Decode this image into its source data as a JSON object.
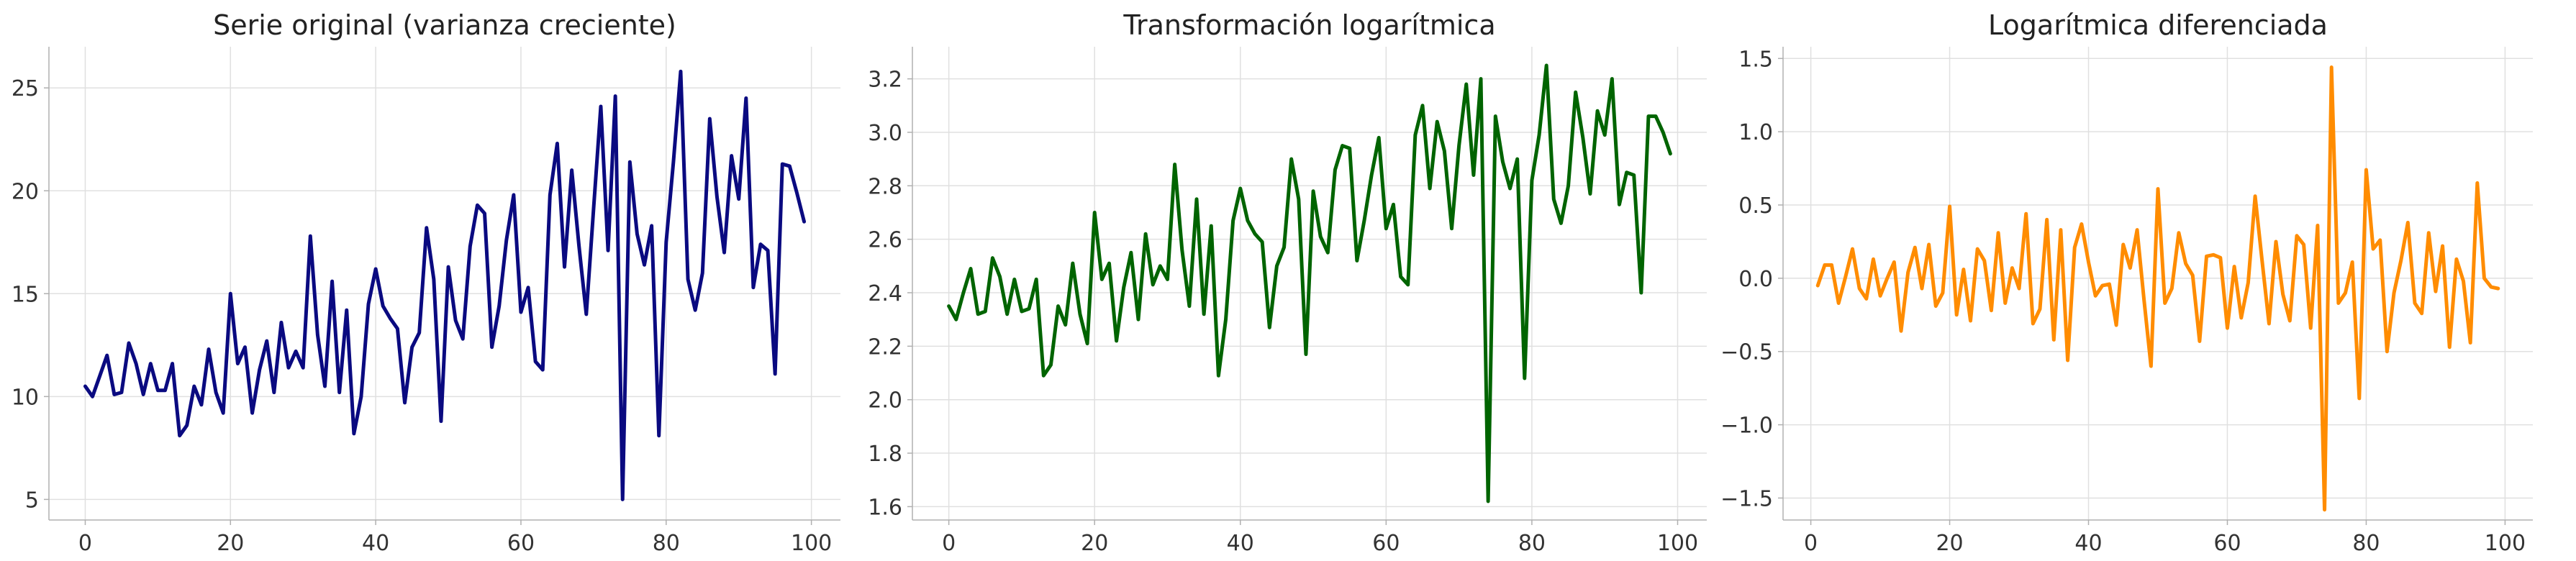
{
  "chart_data": [
    {
      "type": "line",
      "title": "Serie original (varianza creciente)",
      "xlabel": "",
      "ylabel": "",
      "xlim": [
        -5,
        104
      ],
      "ylim": [
        4,
        27
      ],
      "xticks": [
        0,
        20,
        40,
        60,
        80,
        100
      ],
      "xtick_labels": [
        "0",
        "20",
        "40",
        "60",
        "80",
        "100"
      ],
      "yticks": [
        5,
        10,
        15,
        20,
        25
      ],
      "ytick_labels": [
        "5",
        "10",
        "15",
        "20",
        "25"
      ],
      "grid": true,
      "color": "#0a0a80",
      "x_start": 0,
      "values": [
        10.5,
        10,
        11,
        12,
        10.1,
        10.2,
        12.6,
        11.6,
        10.1,
        11.6,
        10.3,
        10.3,
        11.6,
        8.1,
        8.6,
        10.5,
        9.6,
        12.3,
        10.2,
        9.2,
        15,
        11.6,
        12.4,
        9.2,
        11.3,
        12.7,
        10.2,
        13.6,
        11.4,
        12.2,
        11.4,
        17.8,
        13,
        10.5,
        15.6,
        10.2,
        14.2,
        8.2,
        10,
        14.5,
        16.2,
        14.4,
        13.8,
        13.3,
        9.7,
        12.4,
        13.1,
        18.2,
        15.7,
        8.8,
        16.3,
        13.7,
        12.8,
        17.3,
        19.3,
        18.9,
        12.4,
        14.4,
        17.6,
        19.8,
        14.1,
        15.3,
        11.7,
        11.3,
        19.8,
        22.3,
        16.3,
        21,
        17.3,
        14,
        19.1,
        24.1,
        17.1,
        24.6,
        5,
        21.4,
        17.9,
        16.4,
        18.3,
        8.1,
        17.5,
        21.4,
        25.8,
        15.7,
        14.2,
        16,
        23.5,
        19.7,
        17,
        21.7,
        19.6,
        24.5,
        15.3,
        17.4,
        17.1,
        11.1,
        21.3,
        21.2,
        19.9,
        18.5
      ]
    },
    {
      "type": "line",
      "title": "Transformación logarítmica",
      "xlabel": "",
      "ylabel": "",
      "xlim": [
        -5,
        104
      ],
      "ylim": [
        1.55,
        3.32
      ],
      "xticks": [
        0,
        20,
        40,
        60,
        80,
        100
      ],
      "xtick_labels": [
        "0",
        "20",
        "40",
        "60",
        "80",
        "100"
      ],
      "yticks": [
        1.6,
        1.8,
        2.0,
        2.2,
        2.4,
        2.6,
        2.8,
        3.0,
        3.2
      ],
      "ytick_labels": [
        "1.6",
        "1.8",
        "2.0",
        "2.2",
        "2.4",
        "2.6",
        "2.8",
        "3.0",
        "3.2"
      ],
      "grid": true,
      "color": "#006400",
      "x_start": 0,
      "values": [
        2.35,
        2.3,
        2.4,
        2.49,
        2.32,
        2.33,
        2.53,
        2.46,
        2.32,
        2.45,
        2.33,
        2.34,
        2.45,
        2.09,
        2.13,
        2.35,
        2.28,
        2.51,
        2.32,
        2.21,
        2.7,
        2.45,
        2.51,
        2.22,
        2.42,
        2.55,
        2.3,
        2.62,
        2.43,
        2.5,
        2.45,
        2.88,
        2.56,
        2.35,
        2.75,
        2.32,
        2.65,
        2.09,
        2.3,
        2.67,
        2.79,
        2.67,
        2.62,
        2.59,
        2.27,
        2.5,
        2.57,
        2.9,
        2.75,
        2.17,
        2.78,
        2.61,
        2.55,
        2.86,
        2.95,
        2.94,
        2.52,
        2.67,
        2.84,
        2.98,
        2.64,
        2.73,
        2.46,
        2.43,
        2.99,
        3.1,
        2.79,
        3.04,
        2.93,
        2.64,
        2.95,
        3.18,
        2.84,
        3.2,
        1.62,
        3.06,
        2.89,
        2.79,
        2.9,
        2.08,
        2.82,
        2.99,
        3.25,
        2.75,
        2.66,
        2.8,
        3.15,
        2.98,
        2.77,
        3.08,
        2.99,
        3.2,
        2.73,
        2.85,
        2.84,
        2.4,
        3.06,
        3.06,
        3,
        2.92
      ]
    },
    {
      "type": "line",
      "title": "Logarítmica diferenciada",
      "xlabel": "",
      "ylabel": "",
      "xlim": [
        -4,
        104
      ],
      "ylim": [
        -1.65,
        1.58
      ],
      "xticks": [
        0,
        20,
        40,
        60,
        80,
        100
      ],
      "xtick_labels": [
        "0",
        "20",
        "40",
        "60",
        "80",
        "100"
      ],
      "yticks": [
        -1.5,
        -1.0,
        -0.5,
        0.0,
        0.5,
        1.0,
        1.5
      ],
      "ytick_labels": [
        "−1.5",
        "−1.0",
        "−0.5",
        "0.0",
        "0.5",
        "1.0",
        "1.5"
      ],
      "grid": true,
      "color": "#ff8c00",
      "x_start": 1,
      "values": [
        -0.05,
        0.09,
        0.09,
        -0.17,
        0.01,
        0.2,
        -0.07,
        -0.14,
        0.13,
        -0.12,
        0,
        0.11,
        -0.36,
        0.04,
        0.21,
        -0.07,
        0.23,
        -0.19,
        -0.1,
        0.49,
        -0.25,
        0.06,
        -0.29,
        0.2,
        0.12,
        -0.22,
        0.31,
        -0.17,
        0.07,
        -0.07,
        0.44,
        -0.31,
        -0.21,
        0.4,
        -0.42,
        0.33,
        -0.56,
        0.21,
        0.37,
        0.11,
        -0.12,
        -0.05,
        -0.04,
        -0.32,
        0.23,
        0.07,
        0.33,
        -0.15,
        -0.6,
        0.61,
        -0.17,
        -0.07,
        0.31,
        0.1,
        0.02,
        -0.43,
        0.15,
        0.16,
        0.14,
        -0.34,
        0.08,
        -0.27,
        -0.03,
        0.56,
        0.12,
        -0.31,
        0.25,
        -0.11,
        -0.29,
        0.29,
        0.23,
        -0.34,
        0.36,
        -1.58,
        1.44,
        -0.17,
        -0.1,
        0.11,
        -0.82,
        0.74,
        0.2,
        0.26,
        -0.5,
        -0.1,
        0.12,
        0.38,
        -0.17,
        -0.24,
        0.31,
        -0.09,
        0.22,
        -0.47,
        0.13,
        -0.02,
        -0.44,
        0.65,
        0,
        -0.06,
        -0.07
      ]
    }
  ]
}
